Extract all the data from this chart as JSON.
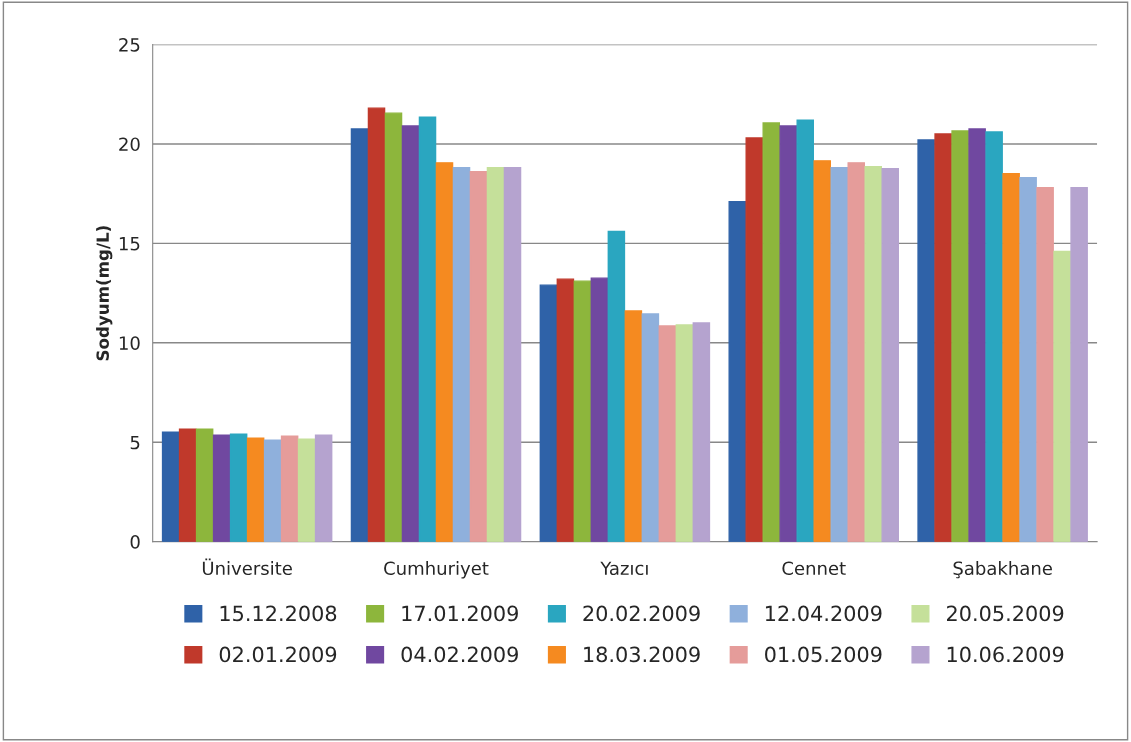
{
  "chart_data": {
    "type": "bar",
    "ylabel": "Sodyum(mg/L)",
    "categories": [
      "Üniversite",
      "Cumhuriyet",
      "Yazıcı",
      "Cennet",
      "Şabakhane"
    ],
    "series": [
      {
        "name": "15.12.2008",
        "color": "#2f62a8",
        "values": [
          5.5,
          20.75,
          12.9,
          17.1,
          20.2
        ]
      },
      {
        "name": "02.01.2009",
        "color": "#c0392b",
        "values": [
          5.65,
          21.8,
          13.2,
          20.3,
          20.5
        ]
      },
      {
        "name": "17.01.2009",
        "color": "#8db63c",
        "values": [
          5.65,
          21.55,
          13.1,
          21.05,
          20.65
        ]
      },
      {
        "name": "04.02.2009",
        "color": "#7048a0",
        "values": [
          5.35,
          20.9,
          13.25,
          20.9,
          20.75
        ]
      },
      {
        "name": "20.02.2009",
        "color": "#2aa6c0",
        "values": [
          5.4,
          21.35,
          15.6,
          21.2,
          20.6
        ]
      },
      {
        "name": "18.03.2009",
        "color": "#f58a20",
        "values": [
          5.2,
          19.05,
          11.6,
          19.15,
          18.5
        ]
      },
      {
        "name": "12.04.2009",
        "color": "#8fb0dc",
        "values": [
          5.1,
          18.8,
          11.45,
          18.8,
          18.3
        ]
      },
      {
        "name": "01.05.2009",
        "color": "#e59c9a",
        "values": [
          5.3,
          18.6,
          10.85,
          19.05,
          17.8
        ]
      },
      {
        "name": "20.05.2009",
        "color": "#c5e09a",
        "values": [
          5.15,
          18.8,
          10.9,
          18.85,
          14.6
        ]
      },
      {
        "name": "10.06.2009",
        "color": "#b5a3cf",
        "values": [
          5.35,
          18.8,
          11.0,
          18.75,
          17.8
        ]
      }
    ],
    "ylim": [
      0,
      25
    ],
    "yticks": [
      0,
      5,
      10,
      15,
      20,
      25
    ],
    "grid": "y",
    "legend": "bottom"
  }
}
